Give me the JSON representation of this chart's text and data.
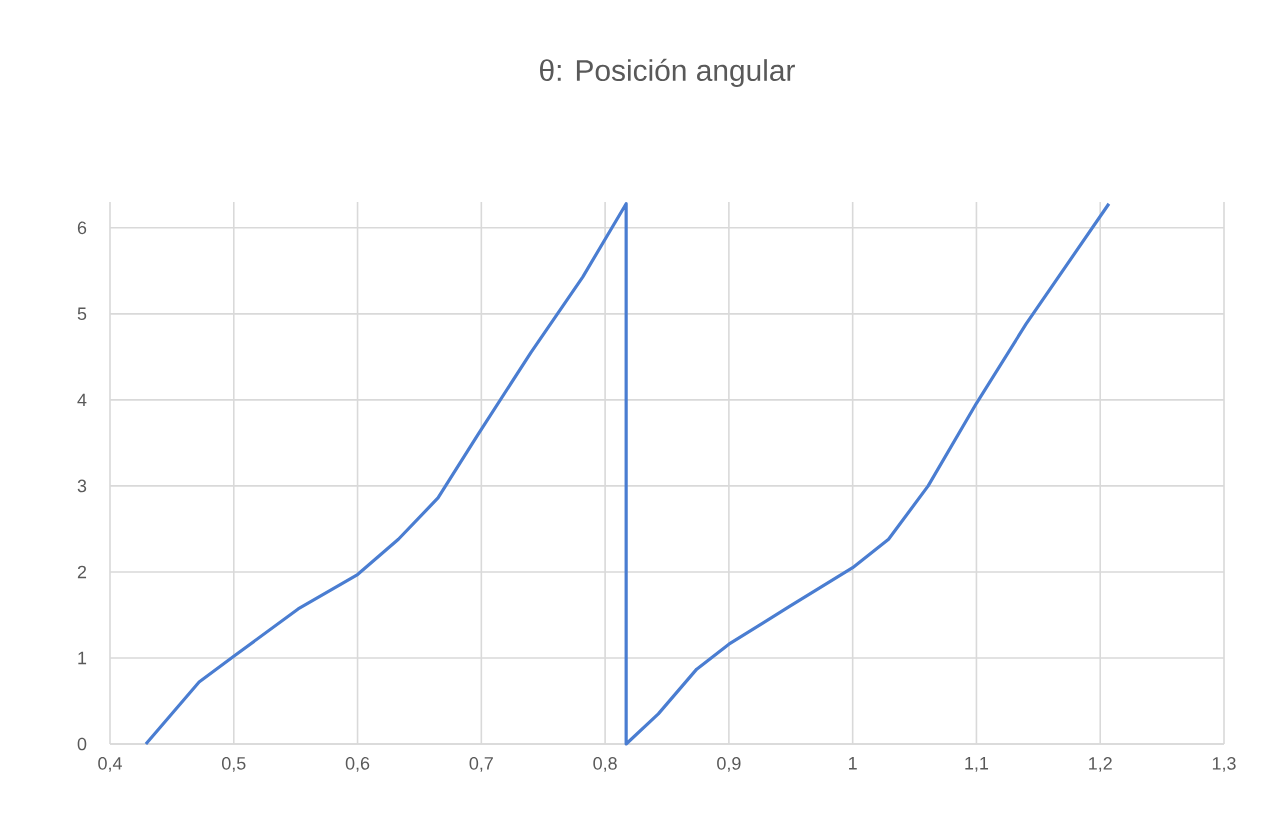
{
  "chart_data": {
    "type": "line",
    "title": "θ: Posición angular",
    "series": [
      {
        "color": "#4a7dd1",
        "x": [
          0.429,
          0.472,
          0.5,
          0.552,
          0.6,
          0.633,
          0.665,
          0.697,
          0.74,
          0.782,
          0.817,
          0.817,
          0.843,
          0.874,
          0.9,
          0.949,
          1.0,
          1.029,
          1.061,
          1.1,
          1.14,
          1.207
        ],
        "values": [
          0,
          0.72,
          1.02,
          1.57,
          1.97,
          2.38,
          2.86,
          3.59,
          4.55,
          5.43,
          6.28,
          0,
          0.35,
          0.87,
          1.16,
          1.6,
          2.05,
          2.38,
          3.0,
          3.96,
          4.88,
          6.28
        ]
      }
    ],
    "xlim": [
      0.4,
      1.3
    ],
    "ylim": [
      0,
      6.3
    ],
    "xticks": [
      {
        "value": 0.4,
        "label": "0,4"
      },
      {
        "value": 0.5,
        "label": "0,5"
      },
      {
        "value": 0.6,
        "label": "0,6"
      },
      {
        "value": 0.7,
        "label": "0,7"
      },
      {
        "value": 0.8,
        "label": "0,8"
      },
      {
        "value": 0.9,
        "label": "0,9"
      },
      1,
      {
        "value": 1.1,
        "label": "1,1"
      },
      {
        "value": 1.2,
        "label": "1,2"
      },
      {
        "value": 1.3,
        "label": "1,3"
      }
    ],
    "yticks": [
      0,
      1,
      2,
      3,
      4,
      5,
      6
    ],
    "grid": true,
    "marker": "none",
    "line_style": "solid"
  }
}
